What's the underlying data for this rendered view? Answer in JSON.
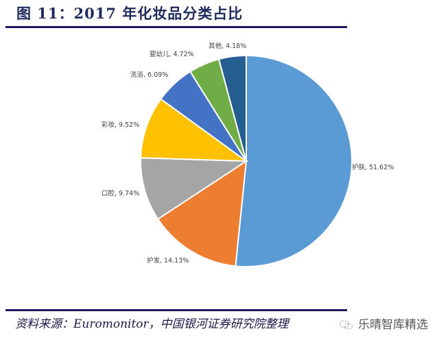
{
  "title": "图 11：2017 年化妆品分类占比",
  "source": "资料来源：Euromonitor，中国银河证券研究院整理",
  "watermark": "乐晴智库精选",
  "colors": {
    "rule": "#1d1760",
    "title": "#1f2a5c"
  },
  "chart_data": {
    "type": "pie",
    "title": "2017 年化妆品分类占比",
    "start_angle": "12 o'clock, clockwise",
    "categories": [
      "护肤",
      "护发",
      "口腔",
      "彩妆",
      "洗浴",
      "婴幼儿",
      "其他"
    ],
    "values": [
      51.62,
      14.13,
      9.74,
      9.52,
      6.09,
      4.72,
      4.18
    ],
    "unit": "%",
    "colors": [
      "#5b9bd5",
      "#ed7d31",
      "#a5a5a5",
      "#ffc000",
      "#4472c4",
      "#70ad47",
      "#255e91"
    ],
    "labels": [
      "护肤, 51.62%",
      "护发, 14.13%",
      "口腔, 9.74%",
      "彩妆, 9.52%",
      "洗浴, 6.09%",
      "婴幼儿, 4.72%",
      "其他, 4.18%"
    ],
    "legend": "none (data labels outside slices)"
  }
}
